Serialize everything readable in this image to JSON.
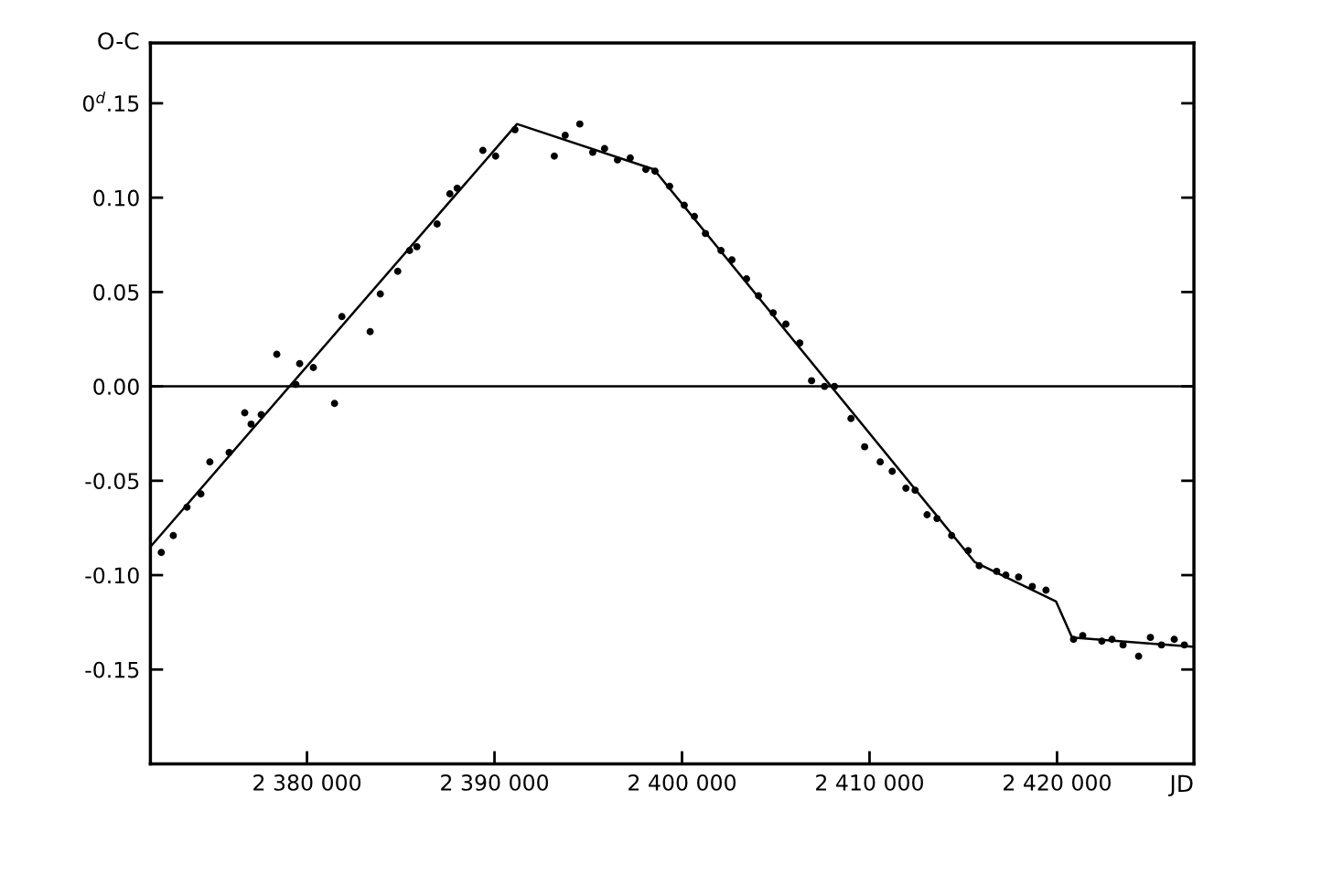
{
  "chart_data": {
    "type": "scatter",
    "ylabel": "O-C",
    "xlabel": "JD",
    "xlim": [
      2371650,
      2427300
    ],
    "ylim": [
      -0.2,
      0.182
    ],
    "xticks": [
      {
        "value": 2380000,
        "label": "2 380 000"
      },
      {
        "value": 2390000,
        "label": "2 390 000"
      },
      {
        "value": 2400000,
        "label": "2 400 000"
      },
      {
        "value": 2410000,
        "label": "2 410 000"
      },
      {
        "value": 2420000,
        "label": "2 420 000"
      }
    ],
    "yticks": [
      {
        "value": -0.15,
        "label": "-0.15"
      },
      {
        "value": -0.1,
        "label": "-0.10"
      },
      {
        "value": -0.05,
        "label": "-0.05"
      },
      {
        "value": 0,
        "label": "0.00"
      },
      {
        "value": 0.05,
        "label": "0.05"
      },
      {
        "value": 0.1,
        "label": "0.10"
      },
      {
        "value": 0.15,
        "label": "0$^{d}$.15"
      }
    ],
    "grid": false,
    "legend": false,
    "marker": "circle",
    "ref_lines": [
      {
        "axis": "y",
        "value": 0,
        "color": "#000000",
        "line_style": "solid"
      }
    ],
    "series": [
      {
        "color": "#000000",
        "x": [
          2372230,
          2372870,
          2373600,
          2374340,
          2374820,
          2375850,
          2376680,
          2377020,
          2377560,
          2378390,
          2379410,
          2379610,
          2380340,
          2381470,
          2381860,
          2383370,
          2383910,
          2384840,
          2385470,
          2385860,
          2386940,
          2387620,
          2388010,
          2389380,
          2390060,
          2391090,
          2393190,
          2393770,
          2394550,
          2395240,
          2395870,
          2396560,
          2397240,
          2398070,
          2398560,
          2399340,
          2400120,
          2400660,
          2401250,
          2402080,
          2402660,
          2403440,
          2404080,
          2404860,
          2405540,
          2406280,
          2406910,
          2407600,
          2408130,
          2409010,
          2409740,
          2410570,
          2411210,
          2411940,
          2412430,
          2413070,
          2413600,
          2414380,
          2415260,
          2415850,
          2416780,
          2417270,
          2417950,
          2418680,
          2419410,
          2420880,
          2421370,
          2422390,
          2422930,
          2423520,
          2424350,
          2424980,
          2425570,
          2426250,
          2426790
        ],
        "values": [
          -0.088,
          -0.079,
          -0.064,
          -0.057,
          -0.04,
          -0.035,
          -0.014,
          -0.02,
          -0.015,
          0.017,
          0.001,
          0.012,
          0.01,
          -0.009,
          0.037,
          0.029,
          0.049,
          0.061,
          0.072,
          0.074,
          0.086,
          0.102,
          0.105,
          0.125,
          0.122,
          0.136,
          0.122,
          0.133,
          0.139,
          0.124,
          0.126,
          0.12,
          0.121,
          0.115,
          0.114,
          0.106,
          0.096,
          0.09,
          0.081,
          0.072,
          0.067,
          0.057,
          0.048,
          0.039,
          0.033,
          0.023,
          0.003,
          0.0,
          0.0,
          -0.017,
          -0.032,
          -0.04,
          -0.045,
          -0.054,
          -0.055,
          -0.068,
          -0.07,
          -0.079,
          -0.087,
          -0.095,
          -0.098,
          -0.1,
          -0.101,
          -0.106,
          -0.108,
          -0.134,
          -0.132,
          -0.135,
          -0.134,
          -0.137,
          -0.143,
          -0.133,
          -0.137,
          -0.134,
          -0.137
        ]
      },
      {
        "type": "line",
        "color": "#000000",
        "marker": "none",
        "line_style": "solid",
        "x": [
          2371650,
          2391200,
          2398500,
          2415600,
          2419950,
          2420800,
          2427300
        ],
        "values": [
          -0.085,
          0.139,
          0.115,
          -0.093,
          -0.114,
          -0.133,
          -0.138
        ]
      }
    ]
  }
}
